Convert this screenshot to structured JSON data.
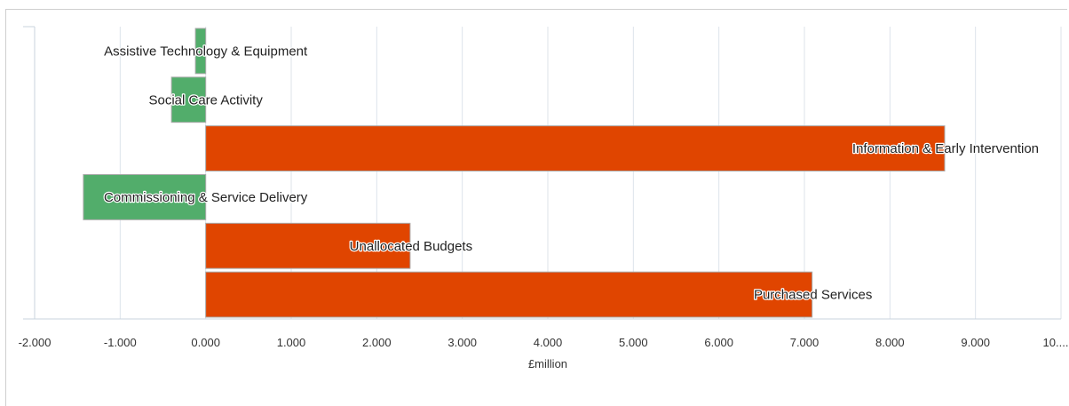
{
  "chart_data": {
    "type": "bar",
    "orientation": "horizontal",
    "xlabel": "£million",
    "xlim": [
      -2,
      10
    ],
    "ticks": [
      -2,
      -1,
      0,
      1,
      2,
      3,
      4,
      5,
      6,
      7,
      8,
      9,
      10
    ],
    "tick_labels": [
      "-2.000",
      "-1.000",
      "0.000",
      "1.000",
      "2.000",
      "3.000",
      "4.000",
      "5.000",
      "6.000",
      "7.000",
      "8.000",
      "9.000",
      "10...."
    ],
    "grid": true,
    "categories": [
      "Assistive Technology & Equipment",
      "Social Care Activity",
      "Information & Early Intervention",
      "Commissioning & Service Delivery",
      "Unallocated Budgets",
      "Purchased Services"
    ],
    "values": [
      -0.12,
      -0.4,
      8.64,
      -1.43,
      2.39,
      7.09
    ],
    "colors": {
      "positive": "#e04500",
      "negative": "#52ad6b",
      "bar_border": "#a9a9a9",
      "grid": "#dde3ea"
    }
  }
}
